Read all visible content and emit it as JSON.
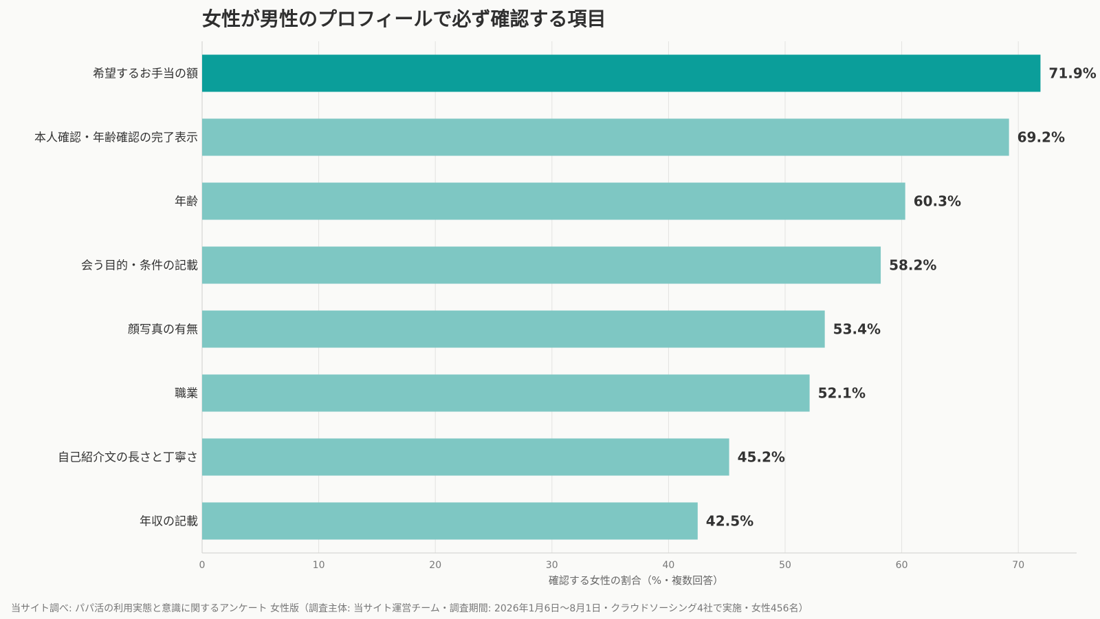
{
  "chart_data": {
    "type": "bar",
    "orientation": "horizontal",
    "title": "女性が男性のプロフィールで必ず確認する項目",
    "xlabel": "確認する女性の割合（%・複数回答）",
    "ylabel": "",
    "xlim": [
      0,
      75
    ],
    "x_ticks": [
      0,
      10,
      20,
      30,
      40,
      50,
      60,
      70
    ],
    "grid": "vertical",
    "categories": [
      "希望するお手当の額",
      "本人確認・年齢確認の完了表示",
      "年齢",
      "会う目的・条件の記載",
      "顔写真の有無",
      "職業",
      "自己紹介文の長さと丁寧さ",
      "年収の記載"
    ],
    "values": [
      71.9,
      69.2,
      60.3,
      58.2,
      53.4,
      52.1,
      45.2,
      42.5
    ],
    "value_labels": [
      "71.9%",
      "69.2%",
      "60.3%",
      "58.2%",
      "53.4%",
      "52.1%",
      "45.2%",
      "42.5%"
    ],
    "colors": {
      "highlight": "#0b9e9a",
      "bar": "#7ec7c3"
    },
    "highlight_index": 0
  },
  "source_note": "当サイト調べ: パパ活の利用実態と意識に関するアンケート 女性版（調査主体: 当サイト運営チーム・調査期間: 2026年1月6日〜8月1日・クラウドソーシング4社で実施・女性456名）"
}
